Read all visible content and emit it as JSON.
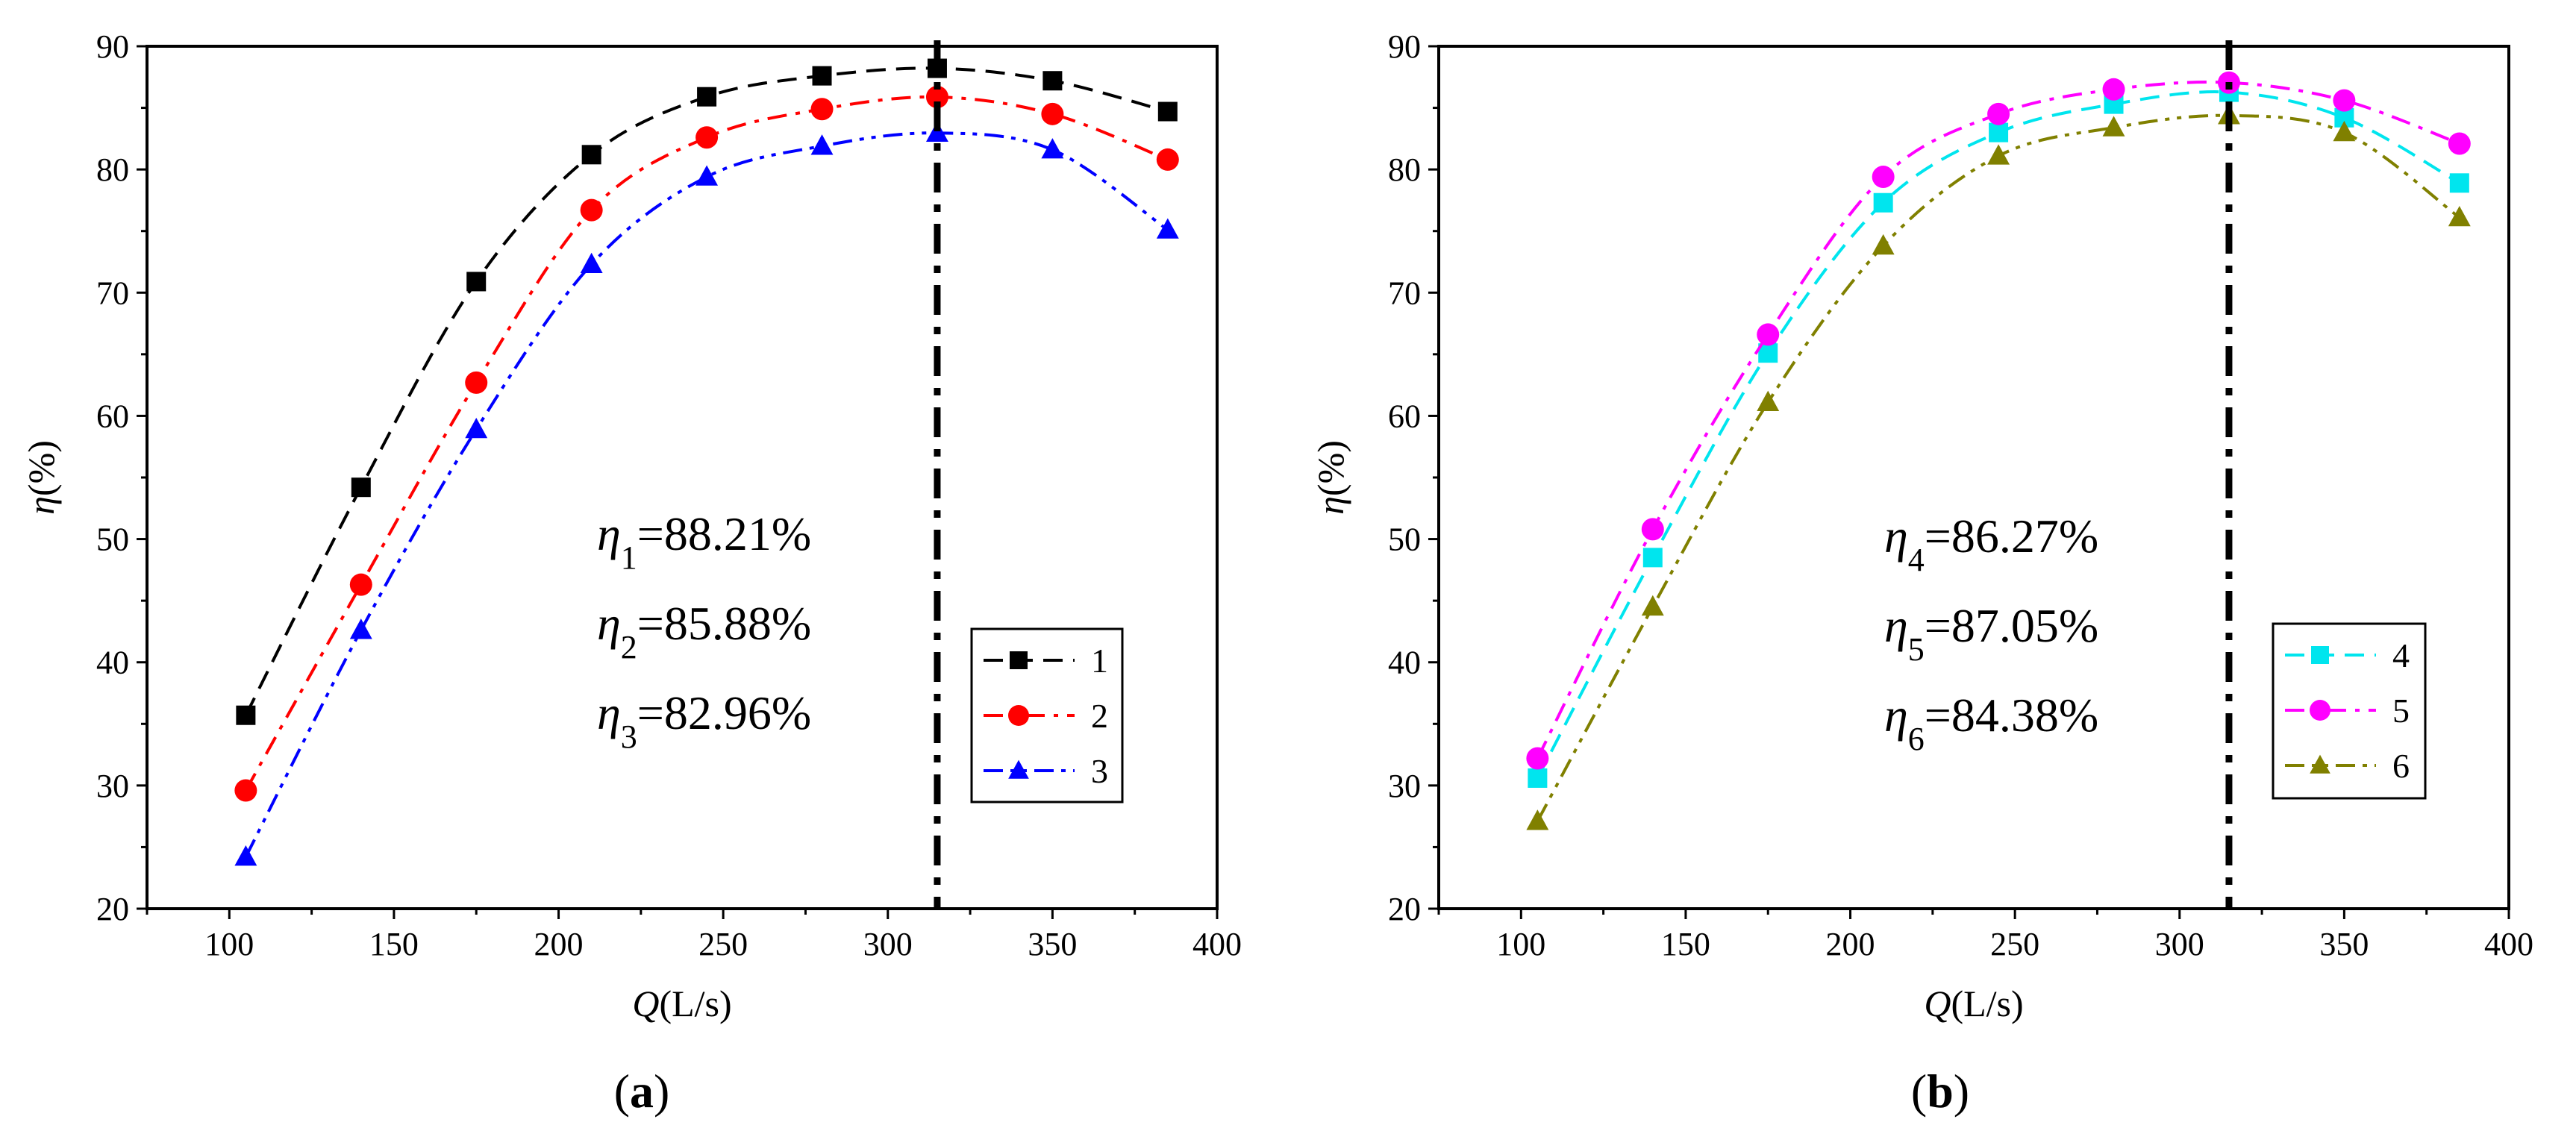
{
  "chart_data": [
    {
      "panel": "a",
      "caption": {
        "open": "(",
        "letter": "a",
        "close": ")"
      },
      "type": "line",
      "xlabel": {
        "var": "Q",
        "unit": "(L/s)"
      },
      "ylabel": {
        "var": "η",
        "unit": "(%)"
      },
      "xlim": [
        75,
        400
      ],
      "ylim": [
        20,
        90
      ],
      "xticks": [
        100,
        150,
        200,
        250,
        300,
        350,
        400
      ],
      "yticks": [
        20,
        30,
        40,
        50,
        60,
        70,
        80,
        90
      ],
      "x": [
        105,
        140,
        175,
        210,
        245,
        280,
        315,
        350,
        385
      ],
      "vline_x": 315,
      "series": [
        {
          "name": "1",
          "marker": "square",
          "color": "#000000",
          "dash": "dash",
          "values": [
            35.7,
            54.2,
            70.9,
            81.2,
            85.9,
            87.6,
            88.21,
            87.2,
            84.7
          ]
        },
        {
          "name": "2",
          "marker": "circle",
          "color": "#ff0000",
          "dash": "dashdot",
          "values": [
            29.6,
            46.3,
            62.7,
            76.7,
            82.6,
            84.9,
            85.88,
            84.5,
            80.8
          ]
        },
        {
          "name": "3",
          "marker": "triangle",
          "color": "#0000ff",
          "dash": "dashdotdot",
          "values": [
            24.2,
            42.6,
            58.9,
            72.3,
            79.4,
            81.9,
            82.96,
            81.6,
            75.1
          ]
        }
      ],
      "annotations": [
        {
          "sym": "η",
          "sub": "1",
          "text": "=88.21%"
        },
        {
          "sym": "η",
          "sub": "2",
          "text": "=85.88%"
        },
        {
          "sym": "η",
          "sub": "3",
          "text": "=82.96%"
        }
      ],
      "legend_position": "lower-right"
    },
    {
      "panel": "b",
      "caption": {
        "open": "(",
        "letter": "b",
        "close": ")"
      },
      "type": "line",
      "xlabel": {
        "var": "Q",
        "unit": "(L/s)"
      },
      "ylabel": {
        "var": "η",
        "unit": "(%)"
      },
      "xlim": [
        75,
        400
      ],
      "ylim": [
        20,
        90
      ],
      "xticks": [
        100,
        150,
        200,
        250,
        300,
        350,
        400
      ],
      "yticks": [
        20,
        30,
        40,
        50,
        60,
        70,
        80,
        90
      ],
      "x": [
        105,
        140,
        175,
        210,
        245,
        280,
        315,
        350,
        385
      ],
      "vline_x": 315,
      "series": [
        {
          "name": "4",
          "marker": "square",
          "color": "#00e5ee",
          "dash": "dash",
          "values": [
            30.6,
            48.5,
            65.1,
            77.3,
            83.0,
            85.3,
            86.27,
            84.2,
            78.9
          ]
        },
        {
          "name": "5",
          "marker": "circle",
          "color": "#ff00ff",
          "dash": "dashdot",
          "values": [
            32.2,
            50.8,
            66.6,
            79.4,
            84.5,
            86.5,
            87.05,
            85.6,
            82.1
          ]
        },
        {
          "name": "6",
          "marker": "triangle",
          "color": "#808000",
          "dash": "dashdotdot",
          "values": [
            27.1,
            44.5,
            61.1,
            73.8,
            81.1,
            83.4,
            84.38,
            83.0,
            76.1
          ]
        }
      ],
      "annotations": [
        {
          "sym": "η",
          "sub": "4",
          "text": "=86.27%"
        },
        {
          "sym": "η",
          "sub": "5",
          "text": "=87.05%"
        },
        {
          "sym": "η",
          "sub": "6",
          "text": "=84.38%"
        }
      ],
      "legend_position": "lower-right"
    }
  ]
}
